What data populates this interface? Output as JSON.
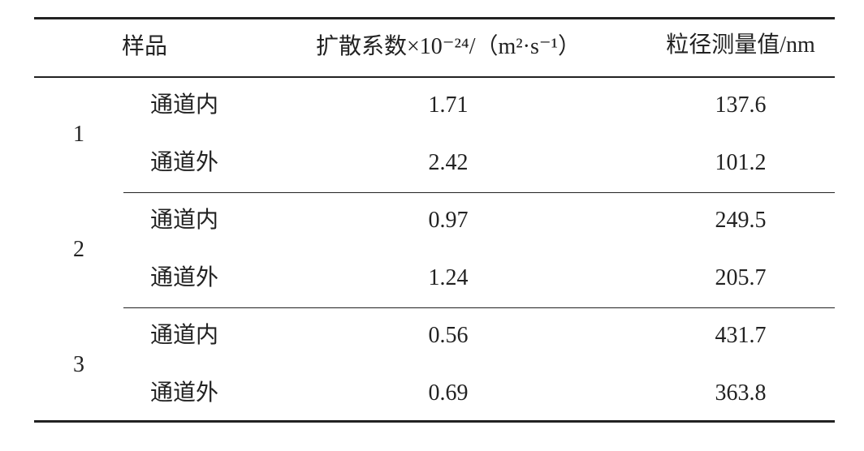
{
  "table": {
    "header": [
      "样品",
      "扩散系数×10⁻²⁴/（m²·s⁻¹）",
      "粒径测量值/nm"
    ],
    "groups": [
      {
        "sample": "1",
        "rows": [
          [
            "通道内",
            "1.71",
            "137.6"
          ],
          [
            "通道外",
            "2.42",
            "101.2"
          ]
        ]
      },
      {
        "sample": "2",
        "rows": [
          [
            "通道内",
            "0.97",
            "249.5"
          ],
          [
            "通道外",
            "1.24",
            "205.7"
          ]
        ]
      },
      {
        "sample": "3",
        "rows": [
          [
            "通道内",
            "0.56",
            "431.7"
          ],
          [
            "通道外",
            "0.69",
            "363.8"
          ]
        ]
      }
    ]
  }
}
